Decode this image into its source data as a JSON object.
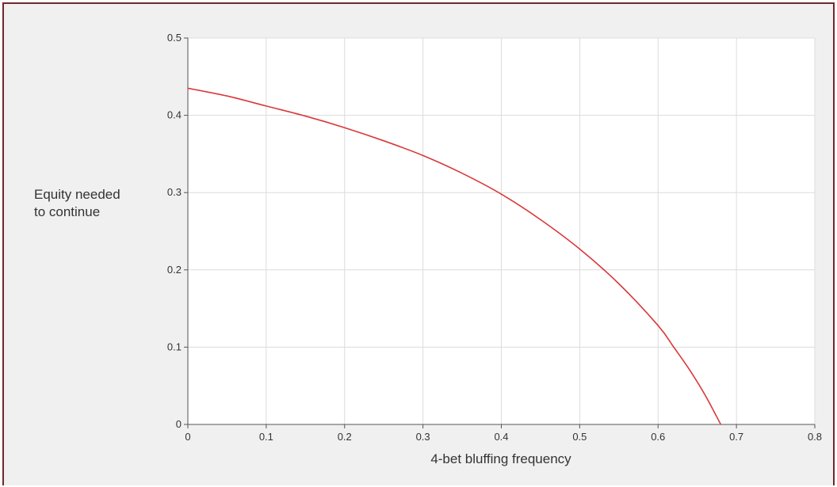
{
  "chart_data": {
    "type": "line",
    "title": "",
    "xlabel": "4-bet bluffing frequency",
    "ylabel_lines": [
      "Equity needed",
      "to continue"
    ],
    "xlim": [
      0,
      0.8
    ],
    "ylim": [
      0,
      0.5
    ],
    "x_ticks": [
      0,
      0.1,
      0.2,
      0.3,
      0.4,
      0.5,
      0.6,
      0.7,
      0.8
    ],
    "x_tick_labels": [
      "0",
      "0.1",
      "0.2",
      "0.3",
      "0.4",
      "0.5",
      "0.6",
      "0.7",
      "0.8"
    ],
    "y_ticks": [
      0,
      0.1,
      0.2,
      0.3,
      0.4,
      0.5
    ],
    "y_tick_labels": [
      "0",
      "0.1",
      "0.2",
      "0.3",
      "0.4",
      "0.5"
    ],
    "grid": true,
    "series": [
      {
        "color": "#d9383a",
        "x": [
          0,
          0.05,
          0.1,
          0.15,
          0.2,
          0.25,
          0.3,
          0.35,
          0.4,
          0.45,
          0.5,
          0.55,
          0.6,
          0.62,
          0.64,
          0.66,
          0.68
        ],
        "y": [
          0.435,
          0.425,
          0.412,
          0.399,
          0.384,
          0.367,
          0.348,
          0.325,
          0.298,
          0.265,
          0.227,
          0.182,
          0.128,
          0.1,
          0.071,
          0.038,
          0.0
        ]
      }
    ]
  }
}
